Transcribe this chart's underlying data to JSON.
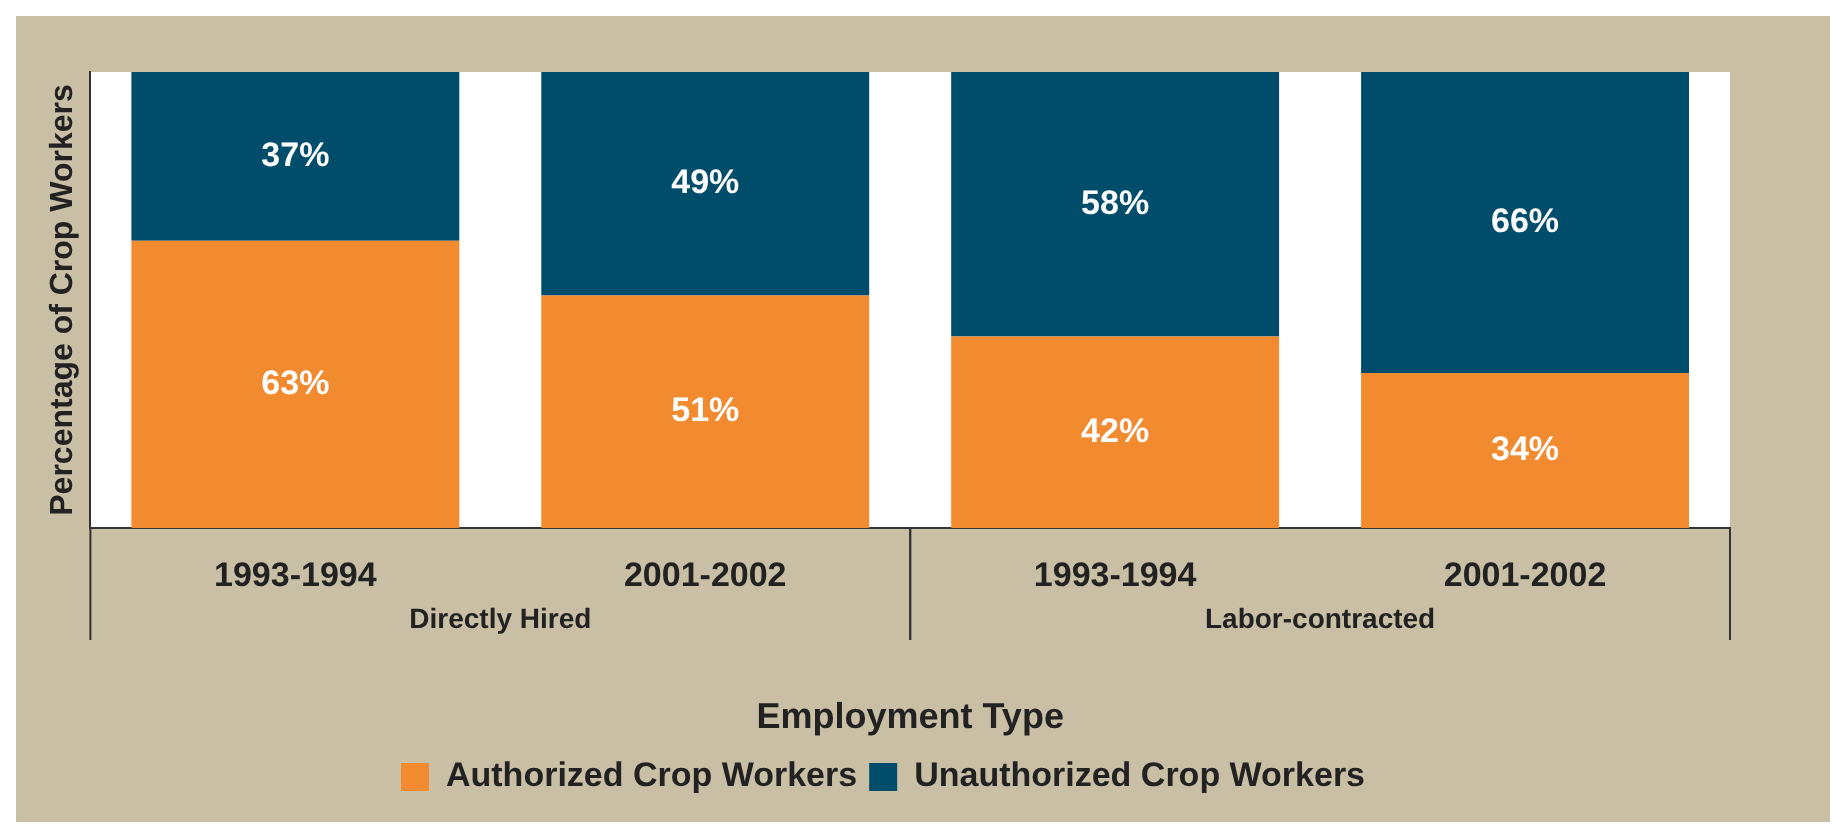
{
  "chart_data": {
    "type": "bar",
    "stacked": true,
    "xlabel": "Employment Type",
    "ylabel": "Percentage of Crop Workers",
    "categories": [
      "1993-1994",
      "2001-2002",
      "1993-1994",
      "2001-2002"
    ],
    "annotations": [
      "Directly Hired",
      "Labor-contracted"
    ],
    "series": [
      {
        "name": "Authorized Crop Workers",
        "color": "#f28a30",
        "values": [
          63,
          51,
          42,
          34
        ],
        "value_labels": [
          "63%",
          "51%",
          "42%",
          "34%"
        ]
      },
      {
        "name": "Unauthorized Crop Workers",
        "color": "#004d6b",
        "values": [
          37,
          49,
          58,
          66
        ],
        "value_labels": [
          "37%",
          "49%",
          "58%",
          "66%"
        ]
      }
    ],
    "tick_labels": "x",
    "grid": false,
    "legend": "bottom"
  }
}
